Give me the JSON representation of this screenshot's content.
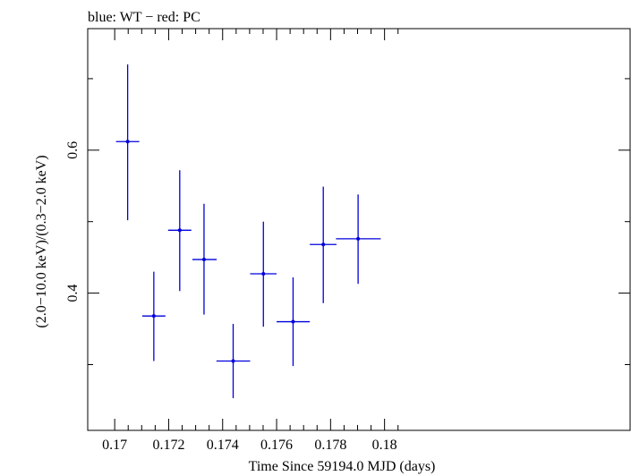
{
  "chart_data": {
    "type": "scatter",
    "title": "blue: WT − red: PC",
    "xlabel": "Time Since 59194.0 MJD (days)",
    "ylabel": "(2.0−10.0 keV)/(0.3−2.0 keV)",
    "xlim": [
      0.169,
      0.1891
    ],
    "ylim": [
      0.208,
      0.77
    ],
    "x_ticks": [
      0.17,
      0.172,
      0.174,
      0.176,
      0.178,
      0.18
    ],
    "x_tick_labels": [
      "0.17",
      "0.172",
      "0.174",
      "0.176",
      "0.178",
      "0.18"
    ],
    "x_minor_ticks": [
      0.1705,
      0.171,
      0.1715,
      0.1725,
      0.173,
      0.1735,
      0.1745,
      0.175,
      0.1755,
      0.1765,
      0.177,
      0.1775,
      0.1785,
      0.179,
      0.1795,
      0.1805
    ],
    "y_ticks": [
      0.4,
      0.6
    ],
    "y_tick_labels": [
      "0.4",
      "0.6"
    ],
    "y_minor_ticks": [
      0.3,
      0.5,
      0.7
    ],
    "grid": false,
    "series": [
      {
        "color": "#0000dd",
        "points": [
          {
            "x": 0.17048,
            "x_lo": 0.17005,
            "x_hi": 0.17091,
            "y": 0.612,
            "y_lo": 0.502,
            "y_hi": 0.72
          },
          {
            "x": 0.17145,
            "x_lo": 0.17102,
            "x_hi": 0.17188,
            "y": 0.368,
            "y_lo": 0.305,
            "y_hi": 0.43
          },
          {
            "x": 0.17241,
            "x_lo": 0.17198,
            "x_hi": 0.17284,
            "y": 0.488,
            "y_lo": 0.403,
            "y_hi": 0.572
          },
          {
            "x": 0.17331,
            "x_lo": 0.17288,
            "x_hi": 0.17378,
            "y": 0.447,
            "y_lo": 0.37,
            "y_hi": 0.525
          },
          {
            "x": 0.17439,
            "x_lo": 0.17377,
            "x_hi": 0.17502,
            "y": 0.305,
            "y_lo": 0.253,
            "y_hi": 0.357
          },
          {
            "x": 0.17551,
            "x_lo": 0.17502,
            "x_hi": 0.176,
            "y": 0.427,
            "y_lo": 0.353,
            "y_hi": 0.5
          },
          {
            "x": 0.17661,
            "x_lo": 0.176,
            "x_hi": 0.17723,
            "y": 0.36,
            "y_lo": 0.298,
            "y_hi": 0.422
          },
          {
            "x": 0.17773,
            "x_lo": 0.17723,
            "x_hi": 0.17822,
            "y": 0.468,
            "y_lo": 0.386,
            "y_hi": 0.549
          },
          {
            "x": 0.17902,
            "x_lo": 0.1782,
            "x_hi": 0.17986,
            "y": 0.476,
            "y_lo": 0.413,
            "y_hi": 0.538
          }
        ]
      }
    ]
  }
}
